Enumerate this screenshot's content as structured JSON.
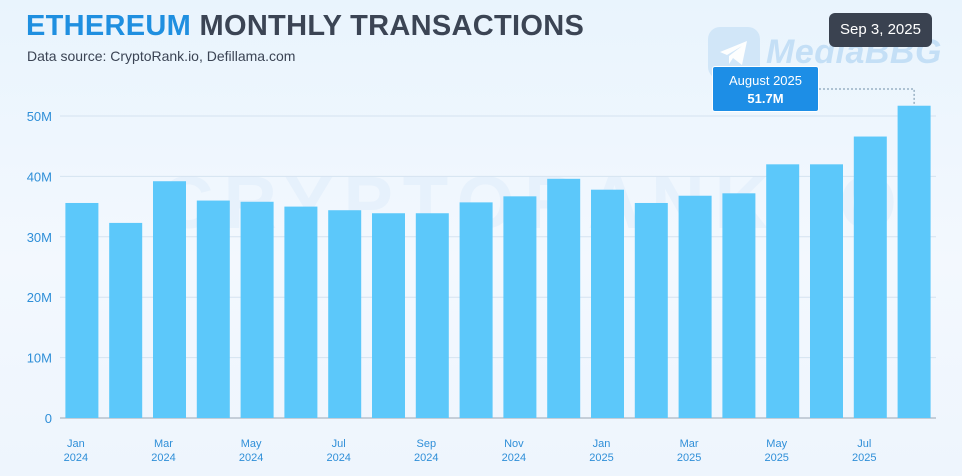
{
  "header": {
    "title_accent": "ETHEREUM",
    "title_rest": "MONTHLY TRANSACTIONS",
    "subtitle": "Data source: CryptoRank.io, Defillama.com",
    "date_badge": "Sep 3, 2025"
  },
  "watermarks": {
    "brand": "MediaBBG",
    "background": "CRYPTORANK.IO"
  },
  "callout": {
    "label": "August 2025",
    "value": "51.7M"
  },
  "colors": {
    "bar": "#5cc8fa",
    "accent": "#1f8fe0",
    "axis_text": "#2f8fd8",
    "callout": "#1d8ee6"
  },
  "chart_data": {
    "type": "bar",
    "title": "ETHEREUM MONTHLY TRANSACTIONS",
    "subtitle": "Data source: CryptoRank.io, Defillama.com",
    "unit": "transactions",
    "categories": [
      "Jan 2024",
      "Feb 2024",
      "Mar 2024",
      "Apr 2024",
      "May 2024",
      "Jun 2024",
      "Jul 2024",
      "Aug 2024",
      "Sep 2024",
      "Oct 2024",
      "Nov 2024",
      "Dec 2024",
      "Jan 2025",
      "Feb 2025",
      "Mar 2025",
      "Apr 2025",
      "May 2025",
      "Jun 2025",
      "Jul 2025",
      "Aug 2025"
    ],
    "values": [
      35.6,
      32.3,
      39.2,
      36.0,
      35.8,
      35.0,
      34.4,
      33.9,
      33.9,
      35.7,
      36.7,
      39.6,
      37.8,
      35.6,
      36.8,
      37.2,
      42.0,
      42.0,
      46.6,
      51.7
    ],
    "value_suffix": "M",
    "x_tick_labels": [
      {
        "index": 0,
        "month": "Jan",
        "year": "2024"
      },
      {
        "index": 2,
        "month": "Mar",
        "year": "2024"
      },
      {
        "index": 4,
        "month": "May",
        "year": "2024"
      },
      {
        "index": 6,
        "month": "Jul",
        "year": "2024"
      },
      {
        "index": 8,
        "month": "Sep",
        "year": "2024"
      },
      {
        "index": 10,
        "month": "Nov",
        "year": "2024"
      },
      {
        "index": 12,
        "month": "Jan",
        "year": "2025"
      },
      {
        "index": 14,
        "month": "Mar",
        "year": "2025"
      },
      {
        "index": 16,
        "month": "May",
        "year": "2025"
      },
      {
        "index": 18,
        "month": "Jul",
        "year": "2025"
      }
    ],
    "y_ticks": [
      {
        "value": 0,
        "label": "0"
      },
      {
        "value": 10,
        "label": "10M"
      },
      {
        "value": 20,
        "label": "20M"
      },
      {
        "value": 30,
        "label": "30M"
      },
      {
        "value": 40,
        "label": "40M"
      },
      {
        "value": 50,
        "label": "50M"
      }
    ],
    "ylim": [
      0,
      52
    ],
    "grid": true,
    "legend": "none",
    "highlight": {
      "index": 19,
      "label": "August 2025",
      "value_label": "51.7M"
    }
  }
}
